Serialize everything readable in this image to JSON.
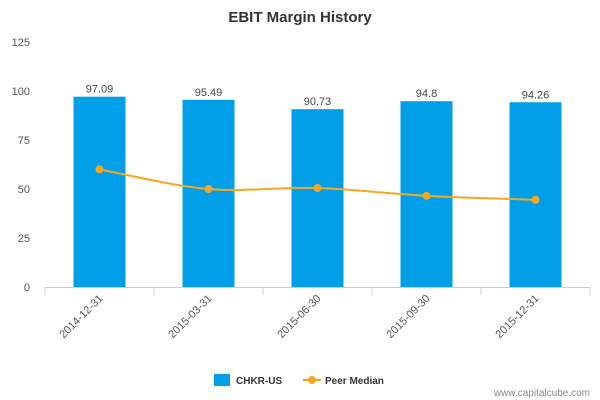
{
  "chart_data": {
    "type": "bar",
    "title": "EBIT Margin History",
    "xlabel": "",
    "ylabel": "",
    "categories": [
      "2014-12-31",
      "2015-03-31",
      "2015-06-30",
      "2015-09-30",
      "2015-12-31"
    ],
    "series": [
      {
        "name": "CHKR-US",
        "type": "bar",
        "values": [
          97.09,
          95.49,
          90.73,
          94.8,
          94.26
        ],
        "color": "#009fe8",
        "data_labels": [
          "97.09",
          "95.49",
          "90.73",
          "94.8",
          "94.26"
        ]
      },
      {
        "name": "Peer Median",
        "type": "line",
        "values": [
          60,
          50,
          50.5,
          46.5,
          44.5
        ],
        "color": "#f5a623"
      }
    ],
    "ylim": [
      0,
      125
    ],
    "yticks": [
      0,
      25,
      50,
      75,
      100,
      125
    ],
    "grid": false,
    "legend": "bottom-center"
  },
  "credit": "www.capitalcube.com"
}
